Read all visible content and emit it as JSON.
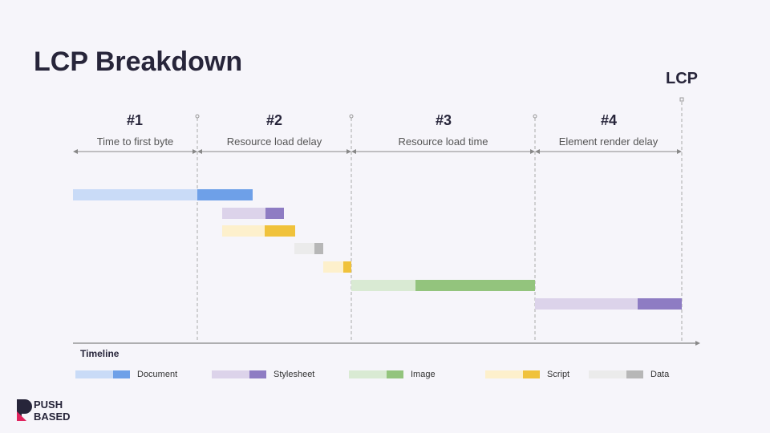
{
  "title": "LCP Breakdown",
  "lcp_label": "LCP",
  "phases": [
    {
      "number": "#1",
      "label": "Time to first byte"
    },
    {
      "number": "#2",
      "label": "Resource load delay"
    },
    {
      "number": "#3",
      "label": "Resource load time"
    },
    {
      "number": "#4",
      "label": "Element render delay"
    }
  ],
  "timeline_label": "Timeline",
  "legend": [
    "Document",
    "Stylesheet",
    "Image",
    "Script",
    "Data"
  ],
  "logo": [
    "PUSH",
    "BASED"
  ]
}
